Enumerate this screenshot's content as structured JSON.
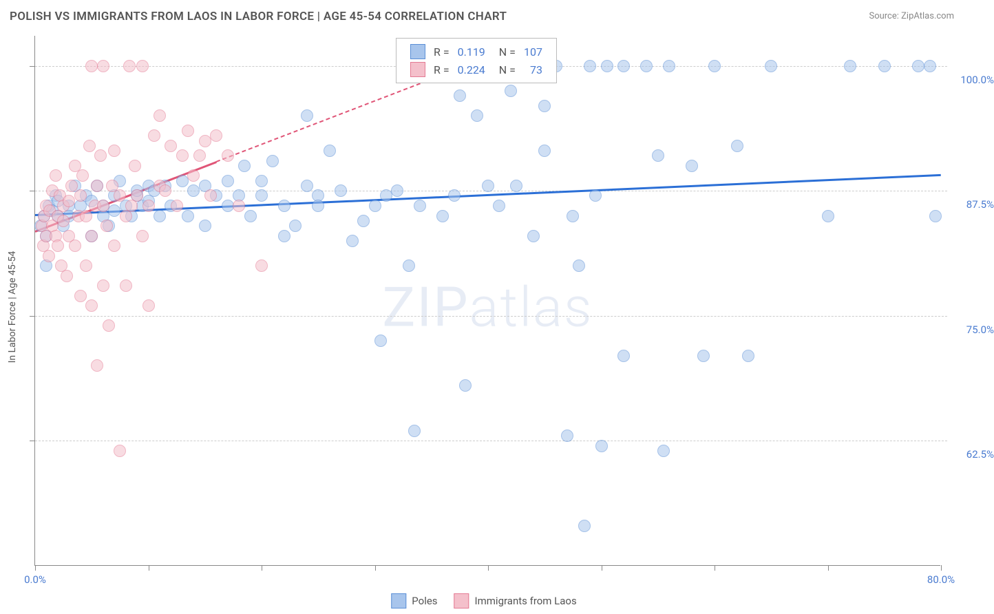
{
  "chart": {
    "type": "scatter",
    "title": "POLISH VS IMMIGRANTS FROM LAOS IN LABOR FORCE | AGE 45-54 CORRELATION CHART",
    "source": "Source: ZipAtlas.com",
    "y_label": "In Labor Force | Age 45-54",
    "watermark": {
      "bold": "ZIP",
      "light": "atlas"
    },
    "background_color": "#ffffff",
    "grid_color": "#cccccc",
    "axis_color": "#888888",
    "tick_label_color": "#4a7bd0",
    "title_color": "#555555",
    "title_fontsize": 17,
    "tick_fontsize": 15,
    "label_fontsize": 14,
    "x_range": [
      0,
      80
    ],
    "y_range": [
      50,
      103
    ],
    "x_ticks": [
      0,
      10,
      20,
      30,
      40,
      50,
      60,
      70,
      80
    ],
    "x_tick_labels": {
      "0": "0.0%",
      "80": "80.0%"
    },
    "y_gridlines": [
      62.5,
      75.0,
      87.5,
      100.0
    ],
    "y_tick_labels": [
      "62.5%",
      "75.0%",
      "87.5%",
      "100.0%"
    ],
    "point_radius": 9,
    "point_opacity": 0.55,
    "series": [
      {
        "key": "poles",
        "label": "Poles",
        "color_fill": "#a8c5ec",
        "color_stroke": "#5b8fd6",
        "trend_color": "#2b6fd6",
        "trend": {
          "x1": 0,
          "y1": 85.2,
          "x2": 80,
          "y2": 89.2,
          "dashed_from_x": null
        },
        "R": "0.119",
        "N": "107",
        "points": [
          [
            0.5,
            84
          ],
          [
            0.8,
            85
          ],
          [
            1,
            83
          ],
          [
            1,
            80
          ],
          [
            1.2,
            86
          ],
          [
            1.5,
            85.5
          ],
          [
            1.8,
            87
          ],
          [
            2,
            85
          ],
          [
            2,
            86.5
          ],
          [
            2.5,
            84
          ],
          [
            3,
            86
          ],
          [
            3,
            85
          ],
          [
            3.5,
            88
          ],
          [
            4,
            86
          ],
          [
            4.5,
            87
          ],
          [
            5,
            83
          ],
          [
            5,
            86.5
          ],
          [
            5.5,
            88
          ],
          [
            6,
            85
          ],
          [
            6,
            86
          ],
          [
            6.5,
            84
          ],
          [
            7,
            87
          ],
          [
            7,
            85.5
          ],
          [
            7.5,
            88.5
          ],
          [
            8,
            86
          ],
          [
            8.5,
            85
          ],
          [
            9,
            87
          ],
          [
            9,
            87.5
          ],
          [
            9.5,
            86
          ],
          [
            10,
            88
          ],
          [
            10,
            86.5
          ],
          [
            10.5,
            87.5
          ],
          [
            11,
            85
          ],
          [
            11.5,
            88
          ],
          [
            12,
            86
          ],
          [
            13,
            88.5
          ],
          [
            13.5,
            85
          ],
          [
            14,
            87.5
          ],
          [
            15,
            88
          ],
          [
            15,
            84
          ],
          [
            16,
            87
          ],
          [
            17,
            88.5
          ],
          [
            17,
            86
          ],
          [
            18,
            87
          ],
          [
            18.5,
            90
          ],
          [
            19,
            85
          ],
          [
            20,
            88.5
          ],
          [
            20,
            87
          ],
          [
            21,
            90.5
          ],
          [
            22,
            86
          ],
          [
            22,
            83
          ],
          [
            23,
            84
          ],
          [
            24,
            88
          ],
          [
            24,
            95
          ],
          [
            25,
            87
          ],
          [
            25,
            86
          ],
          [
            26,
            91.5
          ],
          [
            27,
            87.5
          ],
          [
            28,
            82.5
          ],
          [
            29,
            84.5
          ],
          [
            30,
            86
          ],
          [
            30.5,
            72.5
          ],
          [
            31,
            87
          ],
          [
            32,
            87.5
          ],
          [
            33.5,
            63.5
          ],
          [
            33,
            80
          ],
          [
            34,
            86
          ],
          [
            36,
            85
          ],
          [
            37,
            87
          ],
          [
            37.5,
            97
          ],
          [
            38,
            68
          ],
          [
            39,
            95
          ],
          [
            40,
            88
          ],
          [
            40,
            100
          ],
          [
            41,
            86
          ],
          [
            42,
            97.5
          ],
          [
            42.5,
            88
          ],
          [
            44,
            83
          ],
          [
            45,
            96
          ],
          [
            45,
            91.5
          ],
          [
            46,
            100
          ],
          [
            47,
            63
          ],
          [
            47.5,
            85
          ],
          [
            48,
            80
          ],
          [
            48.5,
            54
          ],
          [
            49,
            100
          ],
          [
            49.5,
            87
          ],
          [
            50,
            62
          ],
          [
            50.5,
            100
          ],
          [
            52,
            100
          ],
          [
            52,
            71
          ],
          [
            54,
            100
          ],
          [
            55,
            91
          ],
          [
            55.5,
            61.5
          ],
          [
            56,
            100
          ],
          [
            58,
            90
          ],
          [
            59,
            71
          ],
          [
            60,
            100
          ],
          [
            62,
            92
          ],
          [
            63,
            71
          ],
          [
            65,
            100
          ],
          [
            70,
            85
          ],
          [
            72,
            100
          ],
          [
            75,
            100
          ],
          [
            78,
            100
          ],
          [
            79,
            100
          ],
          [
            79.5,
            85
          ]
        ]
      },
      {
        "key": "laos",
        "label": "Immigrants from Laos",
        "color_fill": "#f4c0cb",
        "color_stroke": "#e47a93",
        "trend_color": "#e05577",
        "trend": {
          "x1": 0,
          "y1": 83.5,
          "x2": 38,
          "y2": 100,
          "dashed_from_x": 16
        },
        "R": "0.224",
        "N": "73",
        "points": [
          [
            0.6,
            84
          ],
          [
            0.7,
            82
          ],
          [
            0.8,
            85
          ],
          [
            1,
            83
          ],
          [
            1,
            86
          ],
          [
            1.2,
            81
          ],
          [
            1.3,
            85.5
          ],
          [
            1.5,
            84
          ],
          [
            1.5,
            87.5
          ],
          [
            1.8,
            83
          ],
          [
            1.8,
            89
          ],
          [
            2,
            82
          ],
          [
            2,
            85
          ],
          [
            2.2,
            87
          ],
          [
            2.3,
            80
          ],
          [
            2.5,
            86
          ],
          [
            2.5,
            84.5
          ],
          [
            2.8,
            79
          ],
          [
            3,
            86.5
          ],
          [
            3,
            83
          ],
          [
            3.2,
            88
          ],
          [
            3.5,
            82
          ],
          [
            3.5,
            90
          ],
          [
            3.8,
            85
          ],
          [
            4,
            87
          ],
          [
            4,
            77
          ],
          [
            4.2,
            89
          ],
          [
            4.5,
            80
          ],
          [
            4.5,
            85
          ],
          [
            4.8,
            92
          ],
          [
            5,
            83
          ],
          [
            5,
            76
          ],
          [
            5,
            100
          ],
          [
            5.3,
            86
          ],
          [
            5.5,
            88
          ],
          [
            5.5,
            70
          ],
          [
            5.8,
            91
          ],
          [
            6,
            78
          ],
          [
            6,
            86
          ],
          [
            6,
            100
          ],
          [
            6.3,
            84
          ],
          [
            6.5,
            74
          ],
          [
            6.8,
            88
          ],
          [
            7,
            82
          ],
          [
            7,
            91.5
          ],
          [
            7.5,
            87
          ],
          [
            7.5,
            61.5
          ],
          [
            8,
            85
          ],
          [
            8,
            78
          ],
          [
            8.3,
            100
          ],
          [
            8.5,
            86
          ],
          [
            8.8,
            90
          ],
          [
            9,
            87
          ],
          [
            9.5,
            83
          ],
          [
            9.5,
            100
          ],
          [
            10,
            86
          ],
          [
            10,
            76
          ],
          [
            10.5,
            93
          ],
          [
            11,
            88
          ],
          [
            11,
            95
          ],
          [
            11.5,
            87.5
          ],
          [
            12,
            92
          ],
          [
            12.5,
            86
          ],
          [
            13,
            91
          ],
          [
            13.5,
            93.5
          ],
          [
            14,
            89
          ],
          [
            14.5,
            91
          ],
          [
            15,
            92.5
          ],
          [
            15.5,
            87
          ],
          [
            16,
            93
          ],
          [
            17,
            91
          ],
          [
            18,
            86
          ],
          [
            20,
            80
          ]
        ]
      }
    ],
    "legend_box": {
      "R_label": "R =",
      "N_label": "N ="
    },
    "bottom_legend": {
      "items": [
        "Poles",
        "Immigrants from Laos"
      ]
    }
  }
}
